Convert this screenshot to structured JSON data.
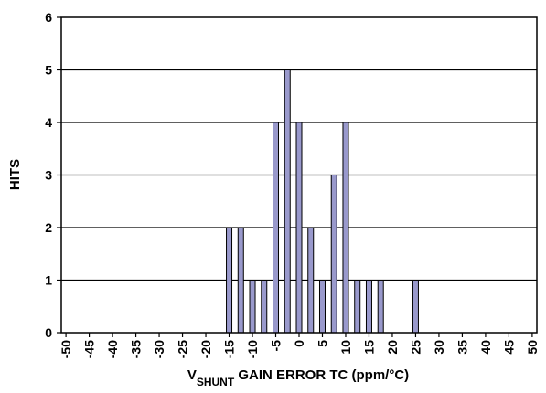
{
  "chart_data": {
    "type": "bar",
    "title": "",
    "xlabel": {
      "prefix": "V",
      "subscript": "SHUNT",
      "suffix": " GAIN ERROR TC (ppm/°C)"
    },
    "ylabel": "HITS",
    "xlim": [
      -51,
      51
    ],
    "ylim": [
      0,
      6
    ],
    "yticks": [
      0,
      1,
      2,
      3,
      4,
      5,
      6
    ],
    "xticks": [
      -50,
      -45,
      -40,
      -35,
      -30,
      -25,
      -20,
      -15,
      -10,
      -5,
      0,
      5,
      10,
      15,
      20,
      25,
      30,
      35,
      40,
      45,
      50
    ],
    "grid": "horizontal",
    "legend": "none",
    "bar_color": "#9999cc",
    "x": [
      -15,
      -12.5,
      -10,
      -7.5,
      -5,
      -2.5,
      0,
      2.5,
      5,
      7.5,
      10,
      12.5,
      15,
      17.5,
      25
    ],
    "values": [
      2,
      2,
      1,
      1,
      4,
      5,
      4,
      2,
      1,
      3,
      4,
      1,
      1,
      1,
      1
    ]
  }
}
